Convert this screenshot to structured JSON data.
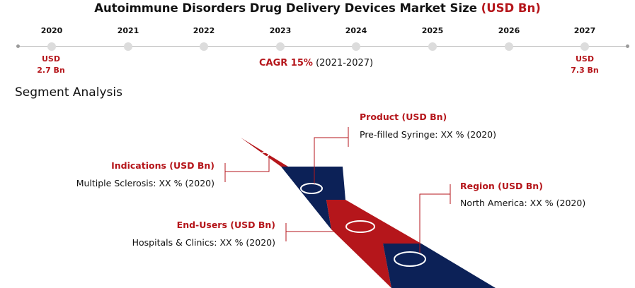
{
  "title": {
    "main": "Autoimmune Disorders Drug Delivery Devices Market Size",
    "unit": "(USD Bn)"
  },
  "timeline": {
    "years": [
      "2020",
      "2021",
      "2022",
      "2023",
      "2024",
      "2025",
      "2026",
      "2027"
    ],
    "start_value": {
      "currency": "USD",
      "amount": "2.7 Bn"
    },
    "end_value": {
      "currency": "USD",
      "amount": "7.3 Bn"
    },
    "cagr_label": "CAGR 15%",
    "cagr_period": "(2021-2027)"
  },
  "segment_heading": "Segment Analysis",
  "segments": {
    "indications": {
      "title": "Indications (USD Bn)",
      "value": "Multiple Sclerosis: XX % (2020)"
    },
    "product": {
      "title": "Product (USD Bn)",
      "value": "Pre-filled Syringe: XX % (2020)"
    },
    "end_users": {
      "title": "End-Users (USD Bn)",
      "value": "Hospitals & Clinics: XX % (2020)"
    },
    "region": {
      "title": "Region (USD Bn)",
      "value": "North America: XX % (2020)"
    }
  },
  "colors": {
    "accent_red": "#b5161b",
    "navy": "#0c2157",
    "timeline_dot": "#dcdcdc"
  },
  "chart_data": {
    "type": "table",
    "title": "Autoimmune Disorders Drug Delivery Devices Market Size (USD Bn)",
    "x": [
      2020,
      2027
    ],
    "values": [
      2.7,
      7.3
    ],
    "unit": "USD Bn",
    "cagr_percent": 15,
    "cagr_period": "2021-2027"
  }
}
